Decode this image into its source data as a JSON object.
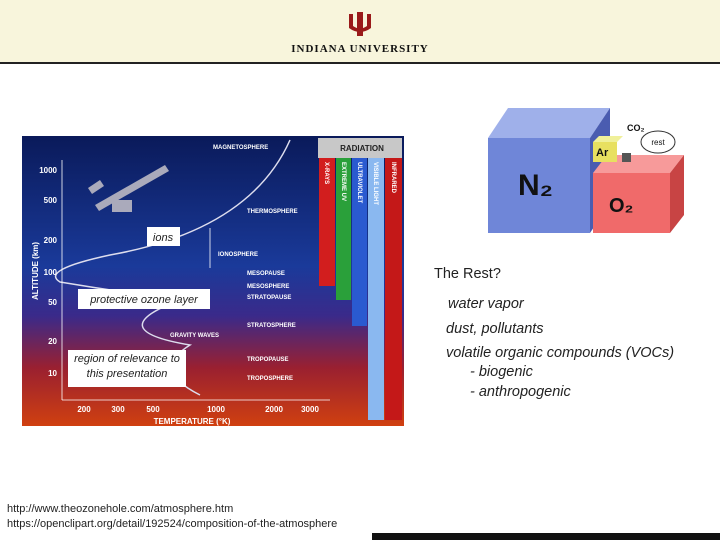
{
  "header": {
    "title": "INDIANA UNIVERSITY"
  },
  "atmosphere_figure": {
    "top_label": "MAGNETOSPHERE",
    "radiation_title": "RADIATION",
    "radiation_bands": [
      "X-RAYS",
      "EXTREME UV",
      "ULTRAVIOLET",
      "VISIBLE LIGHT",
      "INFRARED"
    ],
    "layers": [
      "THERMOSPHERE",
      "IONOSPHERE",
      "MESOPAUSE",
      "MESOSPHERE",
      "STRATOPAUSE",
      "STRATOSPHERE",
      "GRAVITY WAVES",
      "TROPOPAUSE",
      "TROPOSPHERE"
    ],
    "altitude_axis": {
      "label": "ALTITUDE (km)",
      "ticks": [
        "1000",
        "500",
        "200",
        "100",
        "50",
        "20",
        "10"
      ]
    },
    "temperature_axis": {
      "label": "TEMPERATURE (°K)",
      "ticks": [
        "200",
        "300",
        "500",
        "1000",
        "2000",
        "3000"
      ]
    },
    "annotations": {
      "ions": "ions",
      "ozone": "protective ozone layer",
      "region": "region of relevance to this presentation"
    }
  },
  "composition_figure": {
    "labels": [
      "N₂",
      "O₂",
      "Ar",
      "CO₂",
      "rest"
    ]
  },
  "text_list": {
    "heading": "The Rest?",
    "items": [
      "water vapor",
      "dust, pollutants",
      "volatile organic compounds (VOCs)",
      "- biogenic",
      "- anthropogenic"
    ]
  },
  "sources": [
    "http://www.theozonehole.com/atmosphere.htm",
    "https://openclipart.org/detail/192524/composition-of-the-atmosphere"
  ]
}
